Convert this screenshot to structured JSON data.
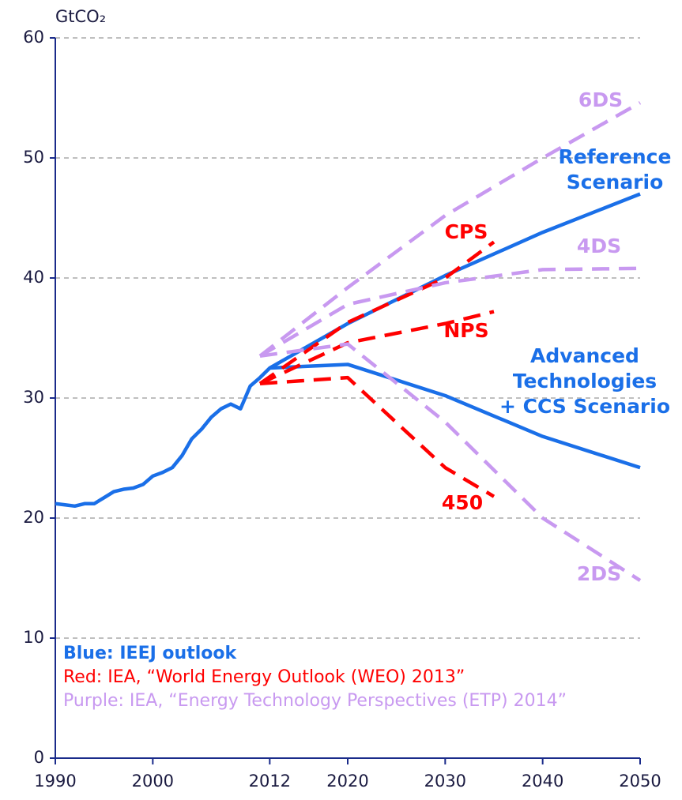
{
  "chart_data": {
    "type": "line",
    "y_label": "GtCO₂",
    "xlim": [
      1990,
      2050
    ],
    "xticks": [
      1990,
      2000,
      2012,
      2020,
      2030,
      2040,
      2050
    ],
    "ylim": [
      0,
      60
    ],
    "yticks": [
      0,
      10,
      20,
      30,
      40,
      50,
      60
    ],
    "grid": true,
    "series": [
      {
        "name": "Reference Scenario",
        "color": "#1a6fe8",
        "dashed": false,
        "x": [
          1990,
          1991,
          1992,
          1993,
          1994,
          1995,
          1996,
          1997,
          1998,
          1999,
          2000,
          2001,
          2002,
          2003,
          2004,
          2005,
          2006,
          2007,
          2008,
          2009,
          2010,
          2011,
          2012,
          2020,
          2030,
          2040,
          2050
        ],
        "values": [
          21.2,
          21.1,
          21.0,
          21.2,
          21.2,
          21.7,
          22.2,
          22.4,
          22.5,
          22.8,
          23.5,
          23.8,
          24.2,
          25.2,
          26.6,
          27.4,
          28.4,
          29.1,
          29.5,
          29.1,
          31.0,
          31.7,
          32.5,
          36.2,
          40.2,
          43.8,
          47.0
        ]
      },
      {
        "name": "Advanced Technologies + CCS Scenario",
        "color": "#1a6fe8",
        "dashed": false,
        "x": [
          2012,
          2020,
          2030,
          2040,
          2050
        ],
        "values": [
          32.5,
          32.8,
          30.2,
          26.8,
          24.2
        ]
      },
      {
        "name": "CPS",
        "color": "#ff0000",
        "dashed": true,
        "x": [
          2011,
          2020,
          2030,
          2035
        ],
        "values": [
          31.2,
          36.3,
          40.0,
          43.0
        ]
      },
      {
        "name": "NPS",
        "color": "#ff0000",
        "dashed": true,
        "x": [
          2011,
          2020,
          2030,
          2035
        ],
        "values": [
          31.2,
          34.6,
          36.2,
          37.2
        ]
      },
      {
        "name": "450",
        "color": "#ff0000",
        "dashed": true,
        "x": [
          2011,
          2020,
          2030,
          2035
        ],
        "values": [
          31.2,
          31.7,
          24.2,
          21.8
        ]
      },
      {
        "name": "6DS",
        "color": "#c899f0",
        "dashed": true,
        "x": [
          2011,
          2020,
          2030,
          2040,
          2050
        ],
        "values": [
          33.5,
          39.2,
          45.2,
          50.0,
          54.6
        ]
      },
      {
        "name": "4DS",
        "color": "#c899f0",
        "dashed": true,
        "x": [
          2011,
          2020,
          2030,
          2040,
          2050
        ],
        "values": [
          33.5,
          37.8,
          39.6,
          40.7,
          40.8
        ]
      },
      {
        "name": "2DS",
        "color": "#c899f0",
        "dashed": true,
        "x": [
          2011,
          2020,
          2030,
          2040,
          2050
        ],
        "values": [
          33.5,
          34.5,
          28.0,
          20.0,
          14.8
        ]
      }
    ],
    "notes": [
      {
        "text": "Blue: IEEJ outlook",
        "color": "#1a6fe8",
        "bold": true
      },
      {
        "text": "Red: IEA, “World Energy Outlook (WEO) 2013”",
        "color": "#ff0000",
        "bold": false
      },
      {
        "text": "Purple: IEA, “Energy Technology Perspectives (ETP) 2014”",
        "color": "#c899f0",
        "bold": false
      }
    ]
  }
}
